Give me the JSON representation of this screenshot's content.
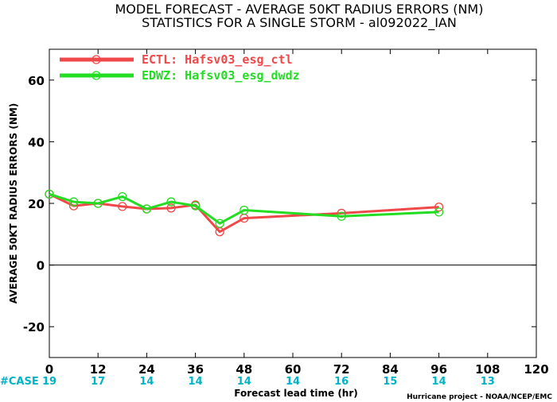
{
  "chart_data": {
    "type": "line",
    "title": "MODEL FORECAST - AVERAGE 50KT RADIUS ERRORS (NM)",
    "subtitle": "STATISTICS FOR A SINGLE STORM - al092022_IAN",
    "xlabel": "Forecast lead time (hr)",
    "ylabel": "AVERAGE 50KT RADIUS ERRORS (NM)",
    "xlim": [
      0,
      120
    ],
    "ylim": [
      -30,
      70
    ],
    "x_ticks": [
      0,
      12,
      24,
      36,
      48,
      60,
      72,
      84,
      96,
      108,
      120
    ],
    "y_ticks": [
      -20,
      0,
      20,
      40,
      60
    ],
    "grid": false,
    "legend_position": "top-left",
    "series": [
      {
        "name": "ECTL: Hafsv03_esg_ctl",
        "color": "#f04848",
        "x": [
          0,
          6,
          12,
          18,
          24,
          30,
          36,
          42,
          48,
          72,
          96
        ],
        "values": [
          23,
          19.2,
          20,
          19,
          18.2,
          18.5,
          19.5,
          10.8,
          15.2,
          16.8,
          18.8
        ]
      },
      {
        "name": "EDWZ: Hafsv03_esg_dwdz",
        "color": "#22dd22",
        "x": [
          0,
          6,
          12,
          18,
          24,
          30,
          36,
          42,
          48,
          72,
          96
        ],
        "values": [
          23,
          20.5,
          20,
          22.2,
          18.2,
          20.5,
          19.2,
          13.5,
          17.8,
          15.8,
          17.2
        ]
      }
    ],
    "case_label": "#CASE",
    "cases": [
      {
        "x": 0,
        "n": "19"
      },
      {
        "x": 12,
        "n": "17"
      },
      {
        "x": 24,
        "n": "14"
      },
      {
        "x": 36,
        "n": "14"
      },
      {
        "x": 48,
        "n": "14"
      },
      {
        "x": 60,
        "n": "14"
      },
      {
        "x": 72,
        "n": "16"
      },
      {
        "x": 84,
        "n": "15"
      },
      {
        "x": 96,
        "n": "14"
      },
      {
        "x": 108,
        "n": "13"
      }
    ],
    "credit": "Hurricane project - NOAA/NCEP/EMC"
  }
}
